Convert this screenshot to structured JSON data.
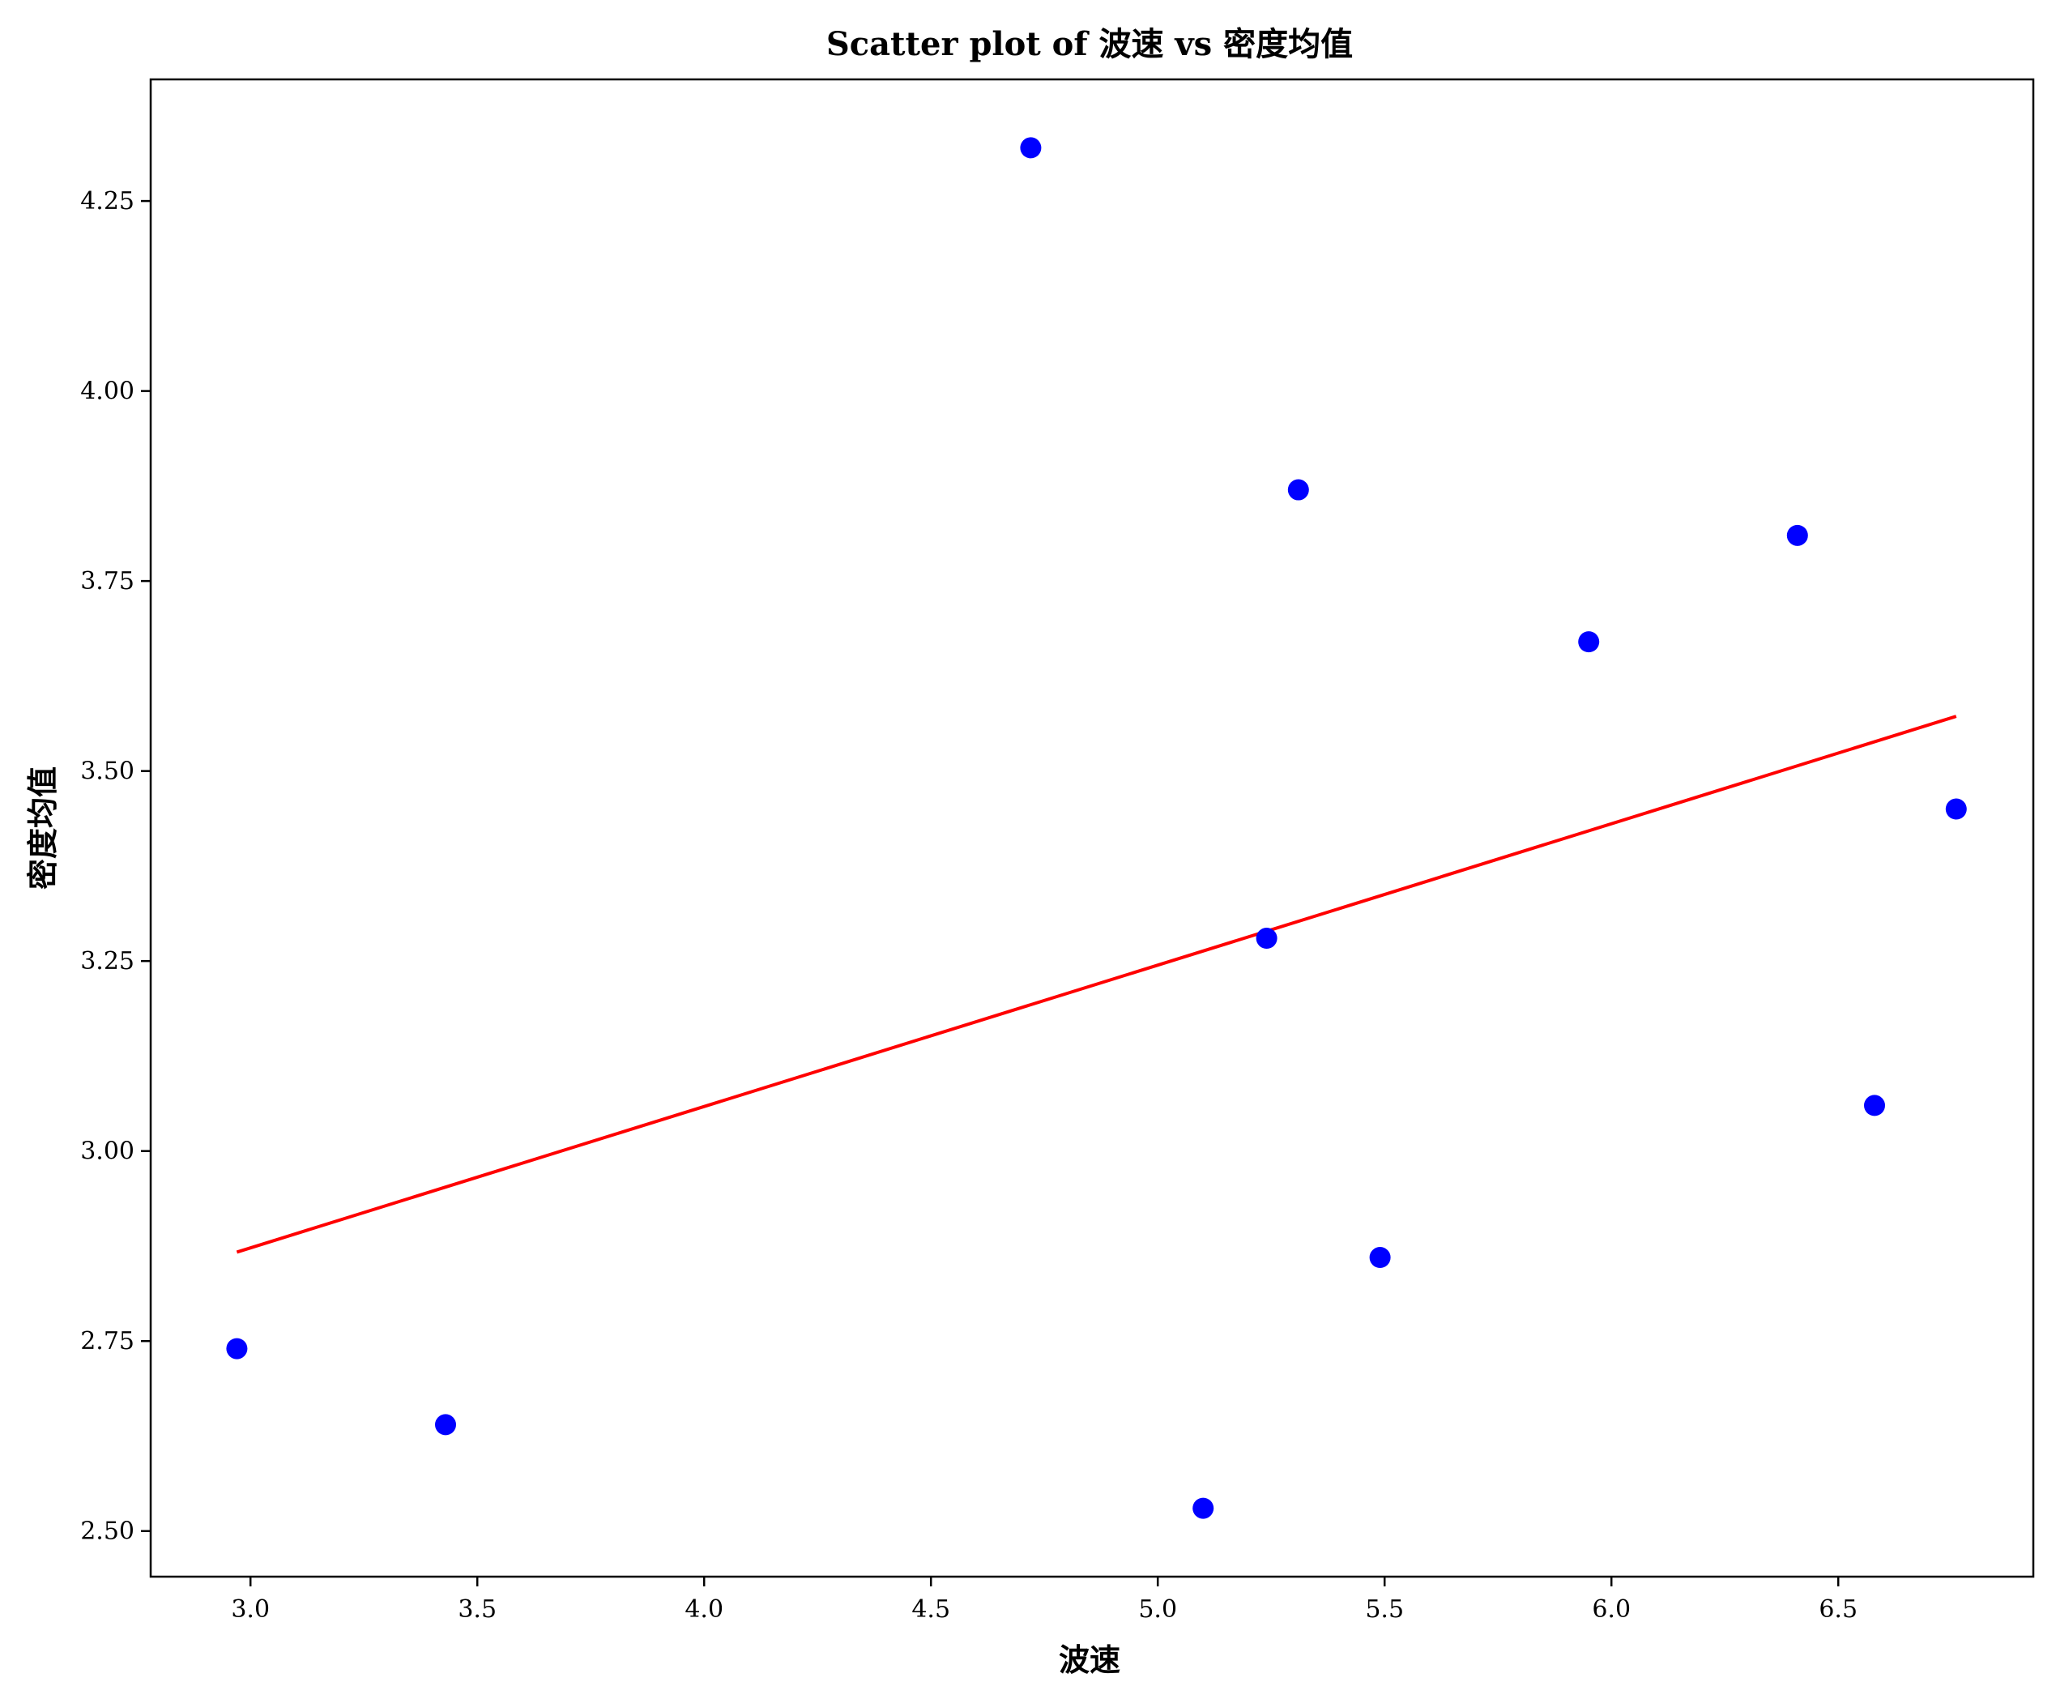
{
  "chart_data": {
    "type": "scatter",
    "title": "Scatter plot of 波速 vs 密度均值",
    "xlabel": "波速",
    "ylabel": "密度均值",
    "xlim": [
      2.78,
      6.93
    ],
    "ylim": [
      2.44,
      4.41
    ],
    "xticks": [
      "3.0",
      "3.5",
      "4.0",
      "4.5",
      "5.0",
      "5.5",
      "6.0",
      "6.5"
    ],
    "yticks": [
      "2.50",
      "2.75",
      "3.00",
      "3.25",
      "3.50",
      "3.75",
      "4.00",
      "4.25"
    ],
    "grid": false,
    "series": [
      {
        "kind": "points",
        "color": "#0000ff",
        "x": [
          2.97,
          3.43,
          4.72,
          5.1,
          5.24,
          5.31,
          5.49,
          5.95,
          6.41,
          6.58,
          6.76
        ],
        "y": [
          2.74,
          2.64,
          4.32,
          2.53,
          3.28,
          3.87,
          2.86,
          3.67,
          3.81,
          3.06,
          3.45
        ]
      },
      {
        "kind": "fit-line",
        "color": "#ff0000",
        "x": [
          2.97,
          6.76
        ],
        "y": [
          2.867,
          3.572
        ]
      }
    ]
  }
}
